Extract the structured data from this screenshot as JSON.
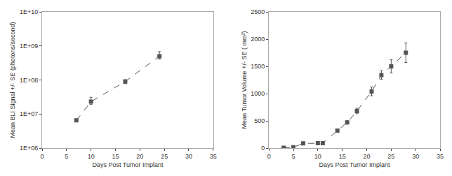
{
  "chart_data": [
    {
      "type": "line",
      "x": [
        7,
        10,
        17,
        24
      ],
      "values": [
        6500000.0,
        23000000.0,
        90000000.0,
        500000000.0
      ],
      "yerr_low": [
        500000.0,
        4000000.0,
        12000000.0,
        90000000.0
      ],
      "yerr_high": [
        500000.0,
        8000000.0,
        12000000.0,
        180000000.0
      ],
      "x_label": "Days Post Tumor Implant",
      "y_label": "Mean BLI Signal +/- SE (photons/second)",
      "xlim": [
        0,
        35
      ],
      "ylim": [
        1000000,
        10000000000
      ],
      "xticks": [
        0,
        5,
        10,
        15,
        20,
        25,
        30,
        35
      ],
      "yticks": [
        {
          "value": 1000000,
          "label": "1E+06"
        },
        {
          "value": 10000000,
          "label": "1E+07"
        },
        {
          "value": 100000000,
          "label": "1E+08"
        },
        {
          "value": 1000000000,
          "label": "1E+09"
        },
        {
          "value": 10000000000,
          "label": "1E+10"
        }
      ],
      "log": "y",
      "grid": false,
      "color": "#555555",
      "marker": "square",
      "line_style": "dashed"
    },
    {
      "type": "line",
      "x": [
        3,
        5,
        7,
        10,
        11,
        14,
        16,
        18,
        21,
        23,
        25,
        28
      ],
      "values": [
        5,
        15,
        85,
        90,
        90,
        320,
        470,
        680,
        1040,
        1340,
        1500,
        1750
      ],
      "yerr": [
        3,
        5,
        10,
        10,
        10,
        30,
        30,
        50,
        80,
        80,
        120,
        180
      ],
      "x_label": "Days Post Tumor Implant",
      "y_label": "Mean Tumor Volume +/- SE ( mm³)",
      "xlim": [
        0,
        35
      ],
      "ylim": [
        0,
        2500
      ],
      "xticks": [
        0,
        5,
        10,
        15,
        20,
        25,
        30,
        35
      ],
      "yticks": [
        0,
        500,
        1000,
        1500,
        2000,
        2500
      ],
      "grid": false,
      "color": "#555555",
      "marker": "square",
      "line_style": "dashed"
    }
  ]
}
